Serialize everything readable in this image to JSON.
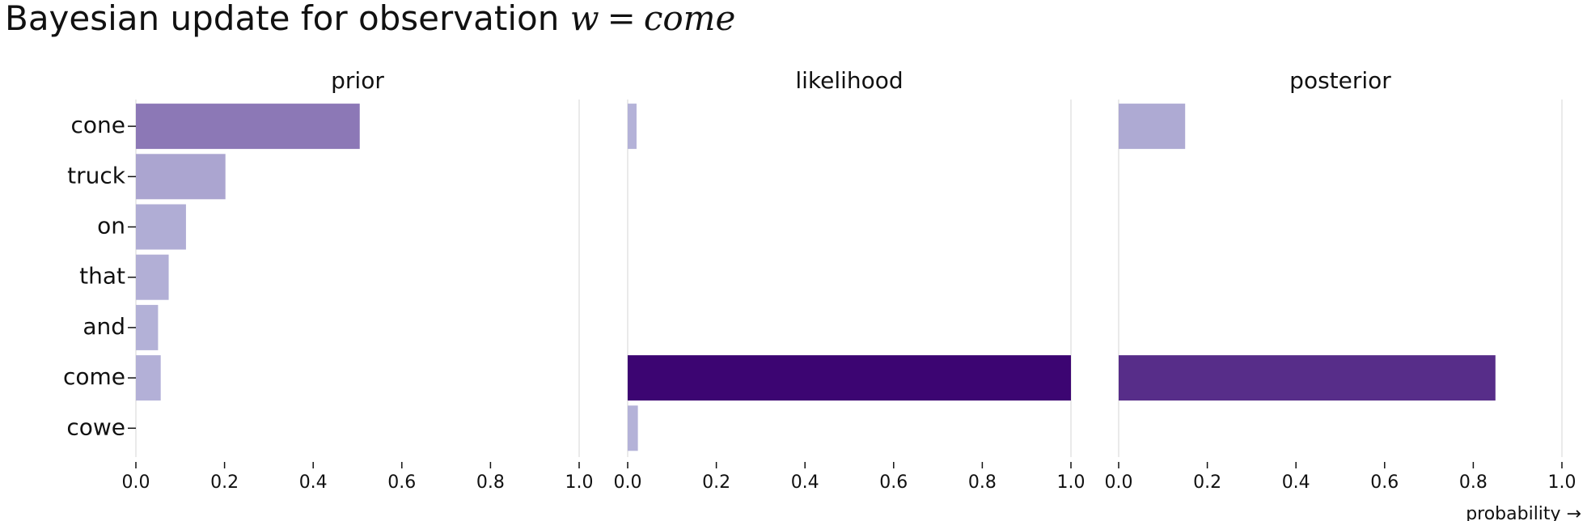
{
  "title": {
    "text": "Bayesian update for observation",
    "math_var": "w",
    "math_eq": "=",
    "math_value": "come"
  },
  "chart_data": {
    "type": "bar",
    "orientation": "horizontal",
    "categories": [
      "cone",
      "truck",
      "on",
      "that",
      "and",
      "come",
      "cowe"
    ],
    "xlim": [
      0,
      1
    ],
    "x_ticks": [
      "0.0",
      "0.2",
      "0.4",
      "0.6",
      "0.8",
      "1.0"
    ],
    "xlabel": "probability →",
    "grid": "vertical gridlines at 0 and 1",
    "color_scale": "purples (darker = higher value)",
    "panels": [
      {
        "name": "prior",
        "values": [
          0.505,
          0.202,
          0.113,
          0.074,
          0.05,
          0.056,
          0.0
        ]
      },
      {
        "name": "likelihood",
        "values": [
          0.02,
          0.0,
          0.0,
          0.0,
          0.0,
          1.0,
          0.023
        ]
      },
      {
        "name": "posterior",
        "values": [
          0.15,
          0.0,
          0.0,
          0.0,
          0.0,
          0.85,
          0.0
        ]
      }
    ]
  }
}
